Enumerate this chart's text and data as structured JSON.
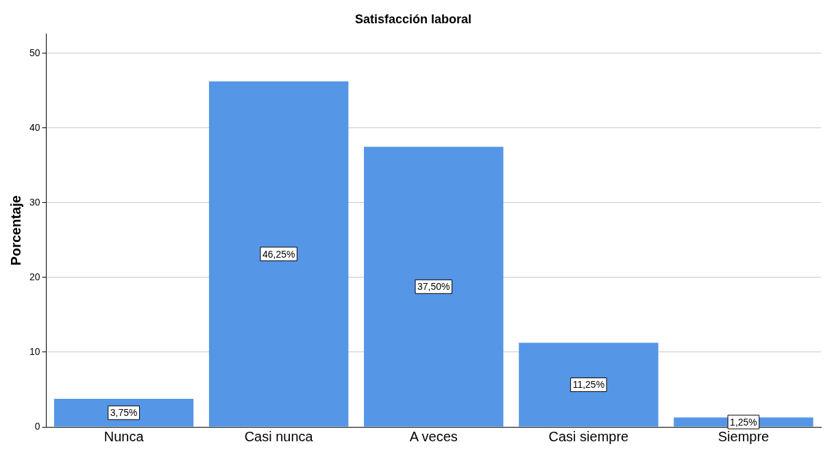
{
  "chart_data": {
    "type": "bar",
    "title": "Satisfacción laboral",
    "ylabel": "Porcentaje",
    "categories": [
      "Nunca",
      "Casi nunca",
      "A veces",
      "Casi siempre",
      "Siempre"
    ],
    "values": [
      3.75,
      46.25,
      37.5,
      11.25,
      1.25
    ],
    "color": "#5596e6",
    "value_labels": [
      "3,75%",
      "46,25%",
      "37,50%",
      "11,25%",
      "1,25%"
    ],
    "ylim": [
      0,
      52.6
    ],
    "yticks": [
      0,
      10,
      20,
      30,
      40,
      50
    ],
    "grid": "y",
    "legend": false
  }
}
